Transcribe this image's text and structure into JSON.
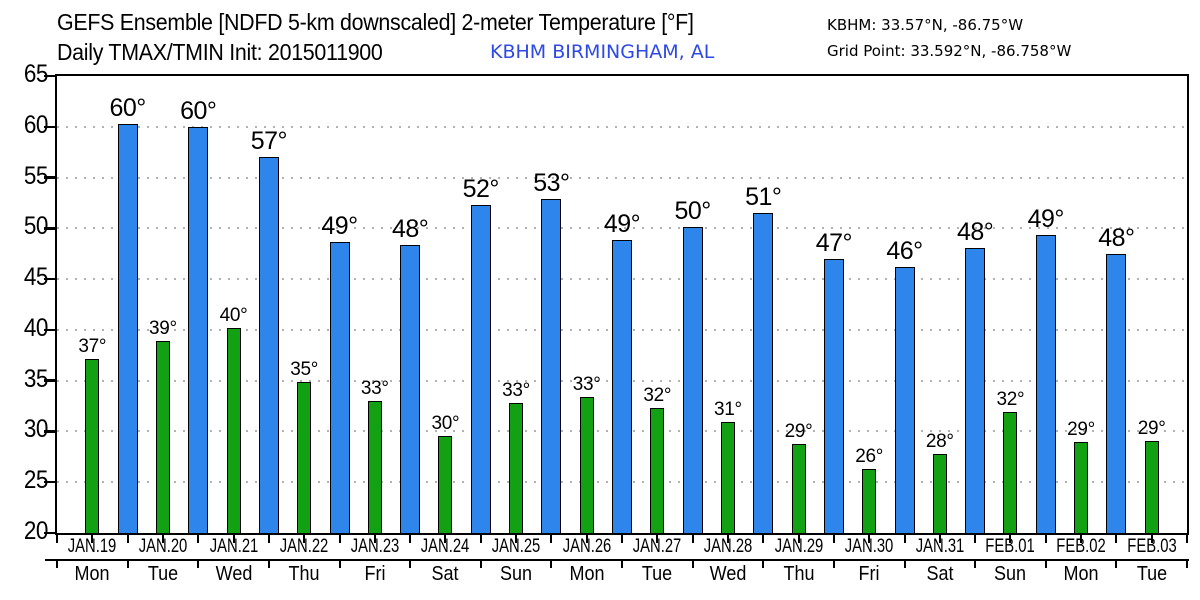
{
  "header": {
    "title": "GEFS Ensemble [NDFD 5-km downscaled] 2-meter Temperature [°F]",
    "subtitle": "Daily TMAX/TMIN Init: 2015011900",
    "station": "KBHM BIRMINGHAM, AL",
    "station_coords": "KBHM: 33.57°N, -86.75°W",
    "grid_point": "Grid Point: 33.592°N, -86.758°W"
  },
  "colors": {
    "tmax_bar": "#2e86ec",
    "tmin_bar": "#12a112",
    "bar_outline": "#000000",
    "station_text": "#2d49e6",
    "grid_dots": "#b2b2b2",
    "axis": "#000000"
  },
  "chart_data": {
    "type": "bar",
    "title": "GEFS Ensemble [NDFD 5-km downscaled] 2-meter Temperature [°F]",
    "subtitle": "Daily TMAX/TMIN Init: 2015011900",
    "ylim": [
      20,
      65
    ],
    "yticks": [
      20,
      25,
      30,
      35,
      40,
      45,
      50,
      55,
      60,
      65
    ],
    "grid": "dotted horizontal every 5°F",
    "legend_position": "none",
    "categories": [
      "JAN.19",
      "JAN.20",
      "JAN.21",
      "JAN.22",
      "JAN.23",
      "JAN.24",
      "JAN.25",
      "JAN.26",
      "JAN.27",
      "JAN.28",
      "JAN.29",
      "JAN.30",
      "JAN.31",
      "FEB.01",
      "FEB.02",
      "FEB.03"
    ],
    "weekdays": [
      "Mon",
      "Tue",
      "Wed",
      "Thu",
      "Fri",
      "Sat",
      "Sun",
      "Mon",
      "Tue",
      "Wed",
      "Thu",
      "Fri",
      "Sat",
      "Sun",
      "Mon",
      "Tue"
    ],
    "series": [
      {
        "name": "TMAX",
        "color": "#2e86ec",
        "values": [
          60.3,
          60.0,
          57.0,
          48.7,
          48.4,
          52.3,
          52.9,
          48.9,
          50.1,
          51.5,
          47.0,
          46.2,
          48.1,
          49.3,
          47.5,
          null
        ],
        "labels": [
          "60°",
          "60°",
          "57°",
          "49°",
          "48°",
          "52°",
          "53°",
          "49°",
          "50°",
          "51°",
          "47°",
          "46°",
          "48°",
          "49°",
          "48°",
          null
        ],
        "note": "FEB.03 TMAX bar falls outside right axis and is not drawn"
      },
      {
        "name": "TMIN",
        "color": "#12a112",
        "values": [
          37.1,
          38.9,
          40.2,
          34.9,
          33.0,
          29.6,
          32.8,
          33.4,
          32.3,
          30.9,
          28.8,
          26.3,
          27.8,
          31.9,
          29.0,
          29.1
        ],
        "labels": [
          "37°",
          "39°",
          "40°",
          "35°",
          "33°",
          "30°",
          "33°",
          "33°",
          "32°",
          "31°",
          "29°",
          "26°",
          "28°",
          "32°",
          "29°",
          "29°"
        ]
      }
    ]
  }
}
